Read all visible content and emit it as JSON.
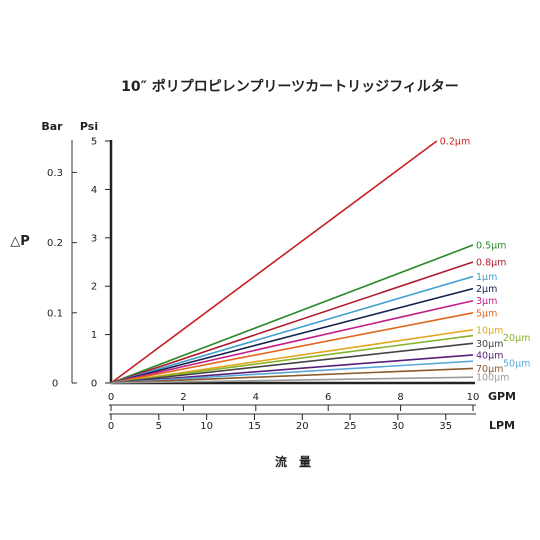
{
  "chart_data": {
    "type": "line",
    "title": "10″ ポリプロピレンプリーツカートリッジフィルター",
    "xlabel": "流　量",
    "ylabel": "△P",
    "units": {
      "bar": "Bar",
      "psi": "Psi",
      "gpm": "GPM",
      "lpm": "LPM"
    },
    "x_unit": "GPM",
    "y_unit": "Psi",
    "xlim": [
      0,
      10
    ],
    "ylim": [
      0,
      5
    ],
    "gpm_ticks": [
      "0",
      "2",
      "4",
      "6",
      "8",
      "10"
    ],
    "lpm_ticks": [
      "0",
      "5",
      "10",
      "15",
      "20",
      "25",
      "30",
      "35"
    ],
    "psi_ticks": [
      "0",
      "1",
      "2",
      "3",
      "4",
      "5"
    ],
    "bar_ticks": [
      "0",
      "0.1",
      "0.2",
      "0.3"
    ],
    "grid": false,
    "legend": "line-end labels",
    "series": [
      {
        "name": "0.2μm",
        "color": "#c8201e",
        "x": [
          0,
          9
        ],
        "y": [
          0,
          5.0
        ]
      },
      {
        "name": "0.5μm",
        "color": "#2a8a2a",
        "x": [
          0,
          10
        ],
        "y": [
          0,
          2.85
        ]
      },
      {
        "name": "0.8μm",
        "color": "#b01c2e",
        "x": [
          0,
          10
        ],
        "y": [
          0,
          2.5
        ]
      },
      {
        "name": "1μm",
        "color": "#3f9fd0",
        "x": [
          0,
          10
        ],
        "y": [
          0,
          2.2
        ]
      },
      {
        "name": "2μm",
        "color": "#14204e",
        "x": [
          0,
          10
        ],
        "y": [
          0,
          1.95
        ]
      },
      {
        "name": "3μm",
        "color": "#c2208a",
        "x": [
          0,
          10
        ],
        "y": [
          0,
          1.7
        ]
      },
      {
        "name": "5μm",
        "color": "#e3661c",
        "x": [
          0,
          10
        ],
        "y": [
          0,
          1.45
        ]
      },
      {
        "name": "10μm",
        "color": "#e2a61c",
        "x": [
          0,
          10
        ],
        "y": [
          0,
          1.1
        ]
      },
      {
        "name": "20μm",
        "color": "#86b22c",
        "x": [
          0,
          10
        ],
        "y": [
          0,
          0.98
        ]
      },
      {
        "name": "30μm",
        "color": "#444444",
        "x": [
          0,
          10
        ],
        "y": [
          0,
          0.82
        ]
      },
      {
        "name": "40μm",
        "color": "#5a1e78",
        "x": [
          0,
          10
        ],
        "y": [
          0,
          0.58
        ]
      },
      {
        "name": "50μm",
        "color": "#5aa8d8",
        "x": [
          0,
          10
        ],
        "y": [
          0,
          0.45
        ]
      },
      {
        "name": "70μm",
        "color": "#8a5a2a",
        "x": [
          0,
          10
        ],
        "y": [
          0,
          0.3
        ]
      },
      {
        "name": "100μm",
        "color": "#9a9a9a",
        "x": [
          0,
          10
        ],
        "y": [
          0,
          0.12
        ]
      }
    ]
  }
}
